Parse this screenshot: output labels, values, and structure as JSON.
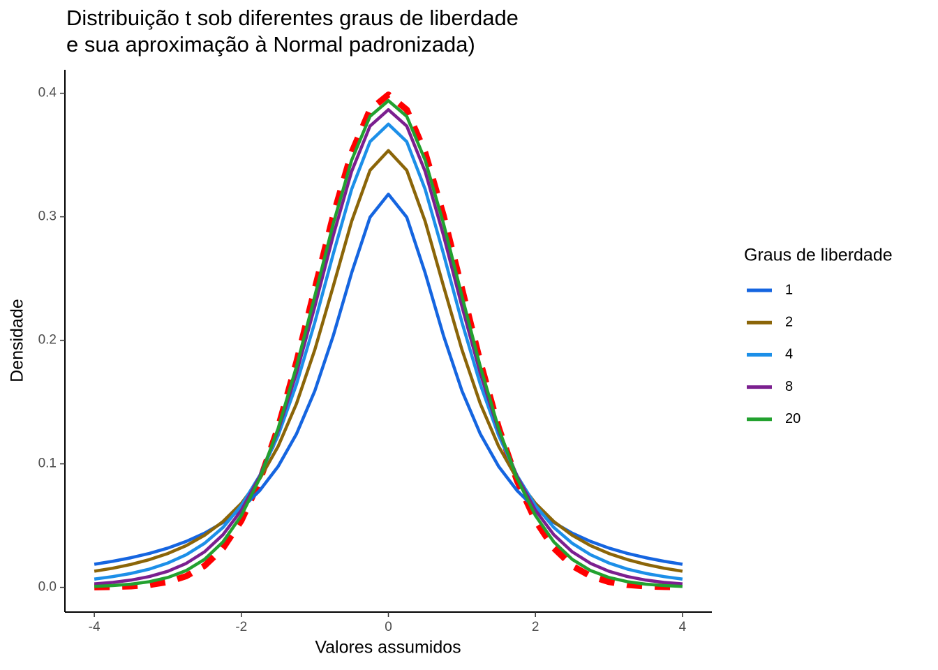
{
  "chart_data": {
    "type": "line",
    "title": [
      "Distribuição t sob diferentes graus de liberdade",
      "e sua aproximação à Normal padronizada)"
    ],
    "x_label": "Valores assumidos",
    "y_label": "Densidade",
    "legend_title": "Graus de liberdade",
    "legend_position": "right",
    "grid": false,
    "xlim": [
      -4.4,
      4.4
    ],
    "ylim": [
      -0.02,
      0.419
    ],
    "xticks": [
      -4,
      -2,
      0,
      2,
      4
    ],
    "yticks": [
      {
        "value": 0,
        "label": "0.0"
      },
      0.1,
      0.2,
      0.3,
      0.4
    ],
    "x": [
      -4,
      -3.75,
      -3.5,
      -3.25,
      -3,
      -2.75,
      -2.5,
      -2.25,
      -2,
      -1.75,
      -1.5,
      -1.25,
      -1,
      -0.75,
      -0.5,
      -0.25,
      0,
      0.25,
      0.5,
      0.75,
      1,
      1.25,
      1.5,
      1.75,
      2,
      2.25,
      2.5,
      2.75,
      3,
      3.25,
      3.5,
      3.75,
      4
    ],
    "series": [
      {
        "color": "#ff0000",
        "dashed": true,
        "values": [
          0.0001,
          0.0004,
          0.0009,
          0.002,
          0.0044,
          0.0091,
          0.0175,
          0.0317,
          0.054,
          0.0863,
          0.1295,
          0.1826,
          0.242,
          0.3011,
          0.3521,
          0.3867,
          0.3989,
          0.3867,
          0.3521,
          0.3011,
          0.242,
          0.1826,
          0.1295,
          0.0863,
          0.054,
          0.0317,
          0.0175,
          0.0091,
          0.0044,
          0.002,
          0.0009,
          0.0004,
          0.0001
        ]
      },
      {
        "name": "1",
        "color": "#1565e0",
        "values": [
          0.0187,
          0.0211,
          0.024,
          0.0275,
          0.0318,
          0.0372,
          0.0439,
          0.0525,
          0.0637,
          0.0784,
          0.0979,
          0.1242,
          0.1592,
          0.2037,
          0.2546,
          0.2996,
          0.3183,
          0.2996,
          0.2546,
          0.2037,
          0.1592,
          0.1242,
          0.0979,
          0.0784,
          0.0637,
          0.0525,
          0.0439,
          0.0372,
          0.0318,
          0.0275,
          0.024,
          0.0211,
          0.0187
        ]
      },
      {
        "name": "2",
        "color": "#8b6508",
        "values": [
          0.0131,
          0.0155,
          0.0186,
          0.0225,
          0.0274,
          0.0338,
          0.0422,
          0.0533,
          0.068,
          0.0878,
          0.1141,
          0.1487,
          0.1925,
          0.2438,
          0.2963,
          0.3376,
          0.3536,
          0.3376,
          0.2963,
          0.2438,
          0.1925,
          0.1487,
          0.1141,
          0.0878,
          0.068,
          0.0533,
          0.0422,
          0.0338,
          0.0274,
          0.0225,
          0.0186,
          0.0155,
          0.0131
        ]
      },
      {
        "name": "4",
        "color": "#1c8fe8",
        "values": [
          0.0067,
          0.0087,
          0.0113,
          0.0148,
          0.0197,
          0.0264,
          0.0357,
          0.0485,
          0.0663,
          0.0905,
          0.1229,
          0.1644,
          0.2147,
          0.2699,
          0.3223,
          0.3608,
          0.375,
          0.3608,
          0.3223,
          0.2699,
          0.2147,
          0.1644,
          0.1229,
          0.0905,
          0.0663,
          0.0485,
          0.0357,
          0.0264,
          0.0197,
          0.0148,
          0.0113,
          0.0087,
          0.0067
        ]
      },
      {
        "name": "8",
        "color": "#7b1f8f",
        "values": [
          0.0028,
          0.004,
          0.0059,
          0.0088,
          0.013,
          0.0194,
          0.0288,
          0.0426,
          0.0624,
          0.0899,
          0.1268,
          0.1733,
          0.2276,
          0.2848,
          0.3367,
          0.3734,
          0.3867,
          0.3734,
          0.3367,
          0.2848,
          0.2276,
          0.1733,
          0.1268,
          0.0899,
          0.0624,
          0.0426,
          0.0288,
          0.0194,
          0.013,
          0.0088,
          0.0059,
          0.004,
          0.0028
        ]
      },
      {
        "name": "20",
        "color": "#22a12f",
        "values": [
          0.0008,
          0.0015,
          0.0026,
          0.0046,
          0.008,
          0.0136,
          0.0227,
          0.0368,
          0.0581,
          0.0883,
          0.1286,
          0.1788,
          0.236,
          0.2944,
          0.3458,
          0.3813,
          0.394,
          0.3813,
          0.3458,
          0.2944,
          0.236,
          0.1788,
          0.1286,
          0.0883,
          0.0581,
          0.0368,
          0.0227,
          0.0136,
          0.008,
          0.0046,
          0.0026,
          0.0015,
          0.0008
        ]
      }
    ]
  }
}
